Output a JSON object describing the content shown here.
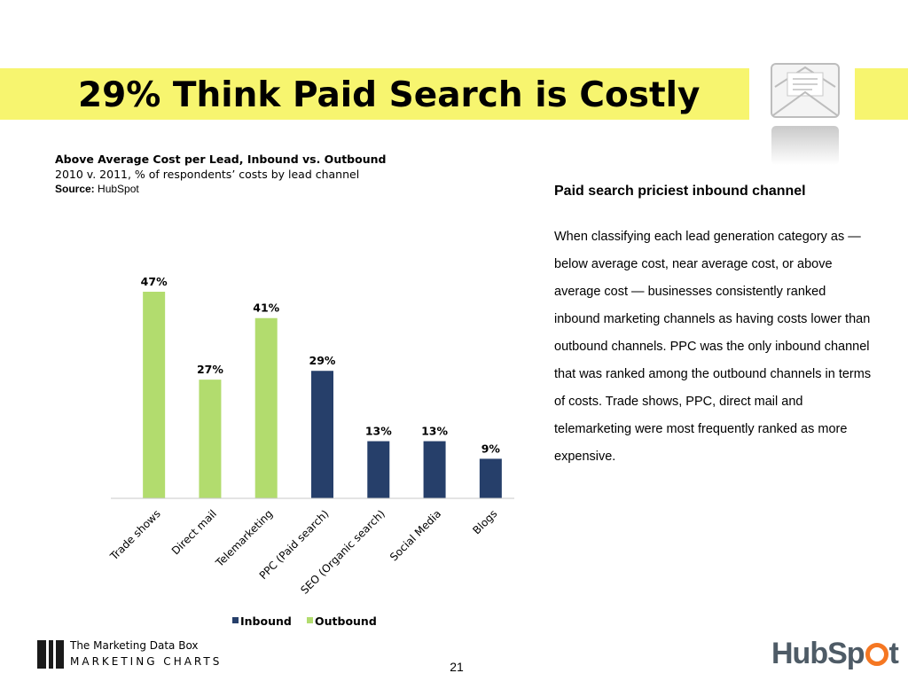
{
  "slide": {
    "title": "29% Think Paid Search is Costly",
    "page_number": "21"
  },
  "chart_header": {
    "title": "Above Average Cost per Lead, Inbound vs. Outbound",
    "subtitle": "2010 v. 2011, % of respondents’ costs by lead channel",
    "source_label": "Source:",
    "source_value": "HubSpot"
  },
  "sidebar": {
    "heading": "Paid search priciest inbound channel",
    "body": "When classifying  each lead generation category as — below average cost, near average cost, or above average cost — businesses consistently ranked inbound marketing channels as having costs lower than outbound channels. PPC was the only inbound channel that was ranked among the outbound channels in terms of costs. Trade shows, PPC, direct mail and telemarketing were most frequently ranked as more expensive."
  },
  "footer": {
    "brand_name": "The Marketing Data Box",
    "brand_tag": "MARKETING CHARTS",
    "hubspot_left": "HubSp",
    "hubspot_right": "t"
  },
  "icons": {
    "mail": "envelope-icon"
  },
  "colors": {
    "banner": "#f7f56f",
    "inbound": "#263f6a",
    "outbound": "#b2dc6e",
    "hubspot_orange": "#f57722"
  },
  "chart_data": {
    "type": "bar",
    "title": "",
    "xlabel": "",
    "ylabel": "",
    "ylim": [
      0,
      50
    ],
    "grid": false,
    "legend_position": "bottom",
    "categories": [
      "Trade shows",
      "Direct mail",
      "Telemarketing",
      "PPC (Paid search)",
      "SEO (Organic search)",
      "Social Media",
      "Blogs"
    ],
    "series": [
      {
        "name": "Inbound",
        "color": "#263f6a",
        "values": [
          null,
          null,
          null,
          29,
          13,
          13,
          9
        ]
      },
      {
        "name": "Outbound",
        "color": "#b2dc6e",
        "values": [
          47,
          27,
          41,
          null,
          null,
          null,
          null
        ]
      }
    ],
    "value_labels": [
      "47%",
      "27%",
      "41%",
      "29%",
      "13%",
      "13%",
      "9%"
    ]
  }
}
